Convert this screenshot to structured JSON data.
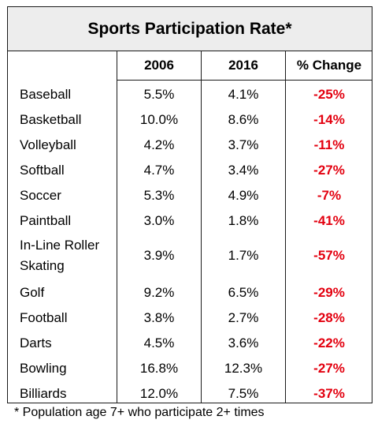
{
  "title": "Sports Participation Rate*",
  "headers": {
    "col1": "2006",
    "col2": "2016",
    "col3": "% Change"
  },
  "footnote": "* Population age 7+ who participate 2+ times",
  "colors": {
    "header_bg": "#ededed",
    "negative": "#e3000f",
    "border": "#1a1a1a"
  },
  "chart_data": {
    "type": "table",
    "title": "Sports Participation Rate*",
    "columns": [
      "2006",
      "2016",
      "% Change"
    ],
    "rows": [
      {
        "sport": "Baseball",
        "y2006": "5.5%",
        "y2016": "4.1%",
        "change": "-25%"
      },
      {
        "sport": "Basketball",
        "y2006": "10.0%",
        "y2016": "8.6%",
        "change": "-14%"
      },
      {
        "sport": "Volleyball",
        "y2006": "4.2%",
        "y2016": "3.7%",
        "change": "-11%"
      },
      {
        "sport": "Softball",
        "y2006": "4.7%",
        "y2016": "3.4%",
        "change": "-27%"
      },
      {
        "sport": "Soccer",
        "y2006": "5.3%",
        "y2016": "4.9%",
        "change": "-7%"
      },
      {
        "sport": "Paintball",
        "y2006": "3.0%",
        "y2016": "1.8%",
        "change": "-41%"
      },
      {
        "sport": "In-Line Roller Skating",
        "y2006": "3.9%",
        "y2016": "1.7%",
        "change": "-57%"
      },
      {
        "sport": "Golf",
        "y2006": "9.2%",
        "y2016": "6.5%",
        "change": "-29%"
      },
      {
        "sport": "Football",
        "y2006": "3.8%",
        "y2016": "2.7%",
        "change": "-28%"
      },
      {
        "sport": "Darts",
        "y2006": "4.5%",
        "y2016": "3.6%",
        "change": "-22%"
      },
      {
        "sport": "Bowling",
        "y2006": "16.8%",
        "y2016": "12.3%",
        "change": "-27%"
      },
      {
        "sport": "Billiards",
        "y2006": "12.0%",
        "y2016": "7.5%",
        "change": "-37%"
      }
    ]
  }
}
